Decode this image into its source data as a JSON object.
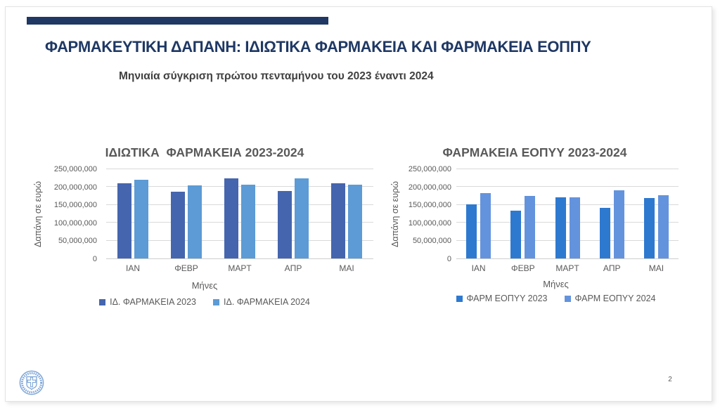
{
  "slide": {
    "title": "ΦΑΡΜΑΚΕΥΤΙΚΗ ΔΑΠΑΝΗ: ΙΔΙΩΤΙΚΑ ΦΑΡΜΑΚΕΙΑ ΚΑΙ ΦΑΡΜΑΚΕΙΑ ΕΟΠΠΥ",
    "subtitle": "Μηνιαία σύγκριση πρώτου πενταμήνου του 2023 έναντι 2024",
    "page_number": "2",
    "accent_color": "#1F3864",
    "logo": "hellenic-republic-emblem",
    "logo_color": "#7EA6D8"
  },
  "chart_data": [
    {
      "type": "bar",
      "title": "ΙΔΙΩΤΙΚΑ  ΦΑΡΜΑΚΕΙΑ 2023-2024",
      "ylabel": "Δαπάνη σε ευρώ",
      "xlabel": "Μήνες",
      "categories": [
        "ΙΑΝ",
        "ΦΕΒΡ",
        "ΜΑΡΤ",
        "ΑΠΡ",
        "ΜΑΙ"
      ],
      "series": [
        {
          "name": "ΙΔ. ΦΑΡΜΑΚΕΙΑ 2023",
          "color": "#4565AE",
          "values": [
            211000000,
            187000000,
            225000000,
            189000000,
            210000000
          ]
        },
        {
          "name": "ΙΔ. ΦΑΡΜΑΚΕΙΑ 2024",
          "color": "#5C9BD5",
          "values": [
            221000000,
            205000000,
            207000000,
            225000000,
            206000000
          ]
        }
      ],
      "ylim": [
        0,
        250000000
      ],
      "y_ticks": [
        "0",
        "50,000,000",
        "100,000,000",
        "150,000,000",
        "200,000,000",
        "250,000,000"
      ],
      "grid": true,
      "legend_position": "bottom"
    },
    {
      "type": "bar",
      "title": "ΦΑΡΜΑΚΕΙΑ ΕΟΠΥΥ 2023-2024",
      "ylabel": "Δαπάνη σε ευρώ",
      "xlabel": "Μήνες",
      "categories": [
        "ΙΑΝ",
        "ΦΕΒΡ",
        "ΜΑΡΤ",
        "ΑΠΡ",
        "ΜΑΙ"
      ],
      "series": [
        {
          "name": "ΦΑΡΜ ΕΟΠΥΥ 2023",
          "color": "#2E79D0",
          "values": [
            151000000,
            134000000,
            171000000,
            141000000,
            170000000
          ]
        },
        {
          "name": "ΦΑΡΜ ΕΟΠΥΥ 2024",
          "color": "#6493DD",
          "values": [
            184000000,
            175000000,
            172000000,
            190000000,
            178000000
          ]
        }
      ],
      "ylim": [
        0,
        250000000
      ],
      "y_ticks": [
        "0",
        "50,000,000",
        "100,000,000",
        "150,000,000",
        "200,000,000",
        "250,000,000"
      ],
      "grid": true,
      "legend_position": "bottom"
    }
  ]
}
